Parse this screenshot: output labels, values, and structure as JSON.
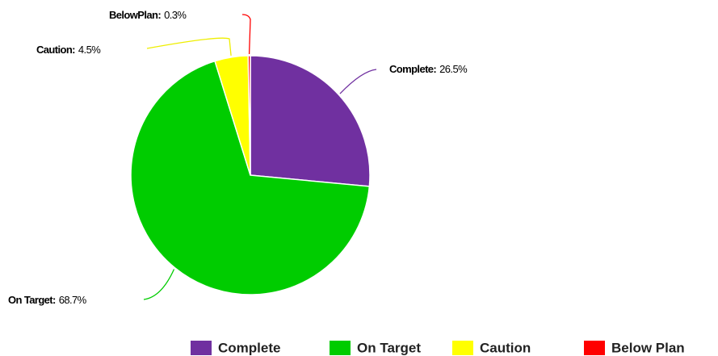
{
  "chart_data": {
    "type": "pie",
    "categories": [
      "Complete",
      "On Target",
      "Caution",
      "Below Plan"
    ],
    "data_labels": [
      "Complete:",
      "On Target:",
      "Caution:",
      "BelowPlan:"
    ],
    "values": [
      26.5,
      68.7,
      4.5,
      0.3
    ],
    "value_labels": [
      "26.5%",
      "68.7%",
      "4.5%",
      "0.3%"
    ],
    "colors": [
      "#7030a0",
      "#00cc00",
      "#ffff00",
      "#ff0000"
    ],
    "legend": "bottom"
  }
}
